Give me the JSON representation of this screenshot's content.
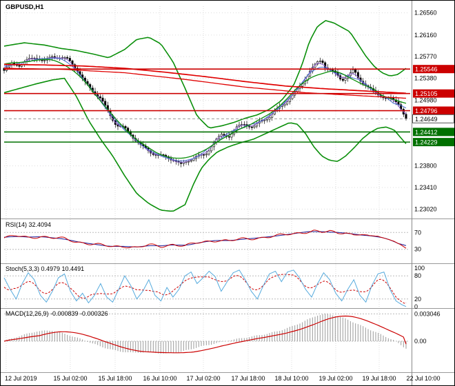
{
  "window": {
    "title": "GBPUSD,H1"
  },
  "colors": {
    "background": "#ffffff",
    "grid": "#dcdcdc",
    "separator": "#999999",
    "bollinger_green": "#0a8f0a",
    "ma_red": "#e00000",
    "ma_violet": "#8a5fd0",
    "ma_blue": "#4a6fd4",
    "level_red": "#cc0000",
    "level_green": "#007000",
    "candle_up": "#ffffff",
    "candle_down": "#000000",
    "candle_outline": "#000000",
    "rsi_line": "#cc0000",
    "rsi_smooth": "#2b2b9e",
    "stoch_k": "#55aadd",
    "stoch_d": "#cc0000",
    "macd_histogram": "#9a9a9a",
    "macd_signal": "#cc0000"
  },
  "chart_data": [
    {
      "type": "candlestick",
      "title": "GBPUSD,H1",
      "symbol": "GBPUSD",
      "timeframe": "H1",
      "y_axis": {
        "min": 1.229,
        "max": 1.2668,
        "ticks": [
          {
            "label": "1.26560",
            "value": 1.2656
          },
          {
            "label": "1.26160",
            "value": 1.2616
          },
          {
            "label": "1.25770",
            "value": 1.2577
          },
          {
            "label": "1.25380",
            "value": 1.2538
          },
          {
            "label": "1.24980",
            "value": 1.2498
          },
          {
            "label": "1.23800",
            "value": 1.238
          },
          {
            "label": "1.23410",
            "value": 1.2341
          },
          {
            "label": "1.23020",
            "value": 1.2302
          }
        ]
      },
      "horizontal_levels": [
        {
          "label": "1.25546",
          "value": 1.25546,
          "color": "#cc0000"
        },
        {
          "label": "1.25105",
          "value": 1.25105,
          "color": "#cc0000"
        },
        {
          "label": "1.24796",
          "value": 1.24796,
          "color": "#cc0000"
        },
        {
          "label": "1.24412",
          "value": 1.24412,
          "color": "#007000"
        },
        {
          "label": "1.24229",
          "value": 1.24229,
          "color": "#007000"
        }
      ],
      "current_price": {
        "label": "1.24649",
        "value": 1.24649
      },
      "close_keypoints": [
        [
          0.0,
          1.2552
        ],
        [
          0.02,
          1.2562
        ],
        [
          0.04,
          1.2558
        ],
        [
          0.06,
          1.257
        ],
        [
          0.08,
          1.2578
        ],
        [
          0.1,
          1.2572
        ],
        [
          0.12,
          1.258
        ],
        [
          0.14,
          1.2575
        ],
        [
          0.16,
          1.2568
        ],
        [
          0.18,
          1.2552
        ],
        [
          0.2,
          1.253
        ],
        [
          0.22,
          1.2518
        ],
        [
          0.24,
          1.2505
        ],
        [
          0.26,
          1.2478
        ],
        [
          0.28,
          1.2452
        ],
        [
          0.3,
          1.2444
        ],
        [
          0.32,
          1.243
        ],
        [
          0.34,
          1.2416
        ],
        [
          0.36,
          1.241
        ],
        [
          0.38,
          1.2403
        ],
        [
          0.4,
          1.2398
        ],
        [
          0.42,
          1.239
        ],
        [
          0.44,
          1.2378
        ],
        [
          0.46,
          1.2388
        ],
        [
          0.48,
          1.2398
        ],
        [
          0.5,
          1.2402
        ],
        [
          0.52,
          1.2425
        ],
        [
          0.54,
          1.2436
        ],
        [
          0.56,
          1.2432
        ],
        [
          0.58,
          1.2446
        ],
        [
          0.6,
          1.2454
        ],
        [
          0.62,
          1.245
        ],
        [
          0.64,
          1.2465
        ],
        [
          0.66,
          1.2472
        ],
        [
          0.68,
          1.2482
        ],
        [
          0.7,
          1.2492
        ],
        [
          0.72,
          1.2505
        ],
        [
          0.74,
          1.2525
        ],
        [
          0.76,
          1.2552
        ],
        [
          0.78,
          1.257
        ],
        [
          0.79,
          1.2575
        ],
        [
          0.8,
          1.256
        ],
        [
          0.82,
          1.2548
        ],
        [
          0.84,
          1.2532
        ],
        [
          0.86,
          1.2542
        ],
        [
          0.87,
          1.255
        ],
        [
          0.88,
          1.2538
        ],
        [
          0.9,
          1.2528
        ],
        [
          0.92,
          1.2516
        ],
        [
          0.94,
          1.2508
        ],
        [
          0.96,
          1.25
        ],
        [
          0.97,
          1.2494
        ],
        [
          0.98,
          1.249
        ],
        [
          0.99,
          1.2478
        ],
        [
          1.0,
          1.24649
        ]
      ],
      "bollinger_upper": [
        [
          0.0,
          1.2596
        ],
        [
          0.05,
          1.2602
        ],
        [
          0.1,
          1.2598
        ],
        [
          0.14,
          1.2592
        ],
        [
          0.18,
          1.2588
        ],
        [
          0.22,
          1.2582
        ],
        [
          0.26,
          1.2575
        ],
        [
          0.3,
          1.259
        ],
        [
          0.33,
          1.2608
        ],
        [
          0.36,
          1.2612
        ],
        [
          0.39,
          1.26
        ],
        [
          0.42,
          1.2568
        ],
        [
          0.45,
          1.252
        ],
        [
          0.48,
          1.247
        ],
        [
          0.51,
          1.2448
        ],
        [
          0.54,
          1.2452
        ],
        [
          0.57,
          1.2458
        ],
        [
          0.6,
          1.2466
        ],
        [
          0.63,
          1.2472
        ],
        [
          0.66,
          1.2482
        ],
        [
          0.69,
          1.2498
        ],
        [
          0.72,
          1.2525
        ],
        [
          0.74,
          1.256
        ],
        [
          0.76,
          1.2605
        ],
        [
          0.78,
          1.2632
        ],
        [
          0.8,
          1.2642
        ],
        [
          0.82,
          1.2638
        ],
        [
          0.84,
          1.263
        ],
        [
          0.86,
          1.2622
        ],
        [
          0.88,
          1.26
        ],
        [
          0.9,
          1.2578
        ],
        [
          0.92,
          1.256
        ],
        [
          0.94,
          1.2548
        ],
        [
          0.96,
          1.2542
        ],
        [
          0.98,
          1.2545
        ],
        [
          1.0,
          1.2556
        ]
      ],
      "bollinger_lower": [
        [
          0.0,
          1.2512
        ],
        [
          0.04,
          1.252
        ],
        [
          0.08,
          1.2528
        ],
        [
          0.12,
          1.2535
        ],
        [
          0.15,
          1.2538
        ],
        [
          0.18,
          1.2505
        ],
        [
          0.21,
          1.2462
        ],
        [
          0.24,
          1.2428
        ],
        [
          0.27,
          1.2398
        ],
        [
          0.3,
          1.2362
        ],
        [
          0.33,
          1.233
        ],
        [
          0.36,
          1.2312
        ],
        [
          0.39,
          1.23
        ],
        [
          0.42,
          1.2298
        ],
        [
          0.45,
          1.231
        ],
        [
          0.47,
          1.2345
        ],
        [
          0.49,
          1.2375
        ],
        [
          0.51,
          1.2392
        ],
        [
          0.53,
          1.2405
        ],
        [
          0.56,
          1.2415
        ],
        [
          0.59,
          1.2422
        ],
        [
          0.62,
          1.2428
        ],
        [
          0.65,
          1.2438
        ],
        [
          0.68,
          1.2448
        ],
        [
          0.71,
          1.2458
        ],
        [
          0.73,
          1.2455
        ],
        [
          0.75,
          1.2438
        ],
        [
          0.77,
          1.2415
        ],
        [
          0.79,
          1.2398
        ],
        [
          0.81,
          1.239
        ],
        [
          0.83,
          1.2388
        ],
        [
          0.85,
          1.2398
        ],
        [
          0.87,
          1.2412
        ],
        [
          0.89,
          1.2428
        ],
        [
          0.91,
          1.244
        ],
        [
          0.93,
          1.2448
        ],
        [
          0.95,
          1.245
        ],
        [
          0.97,
          1.2445
        ],
        [
          0.99,
          1.2428
        ],
        [
          1.0,
          1.242
        ]
      ],
      "ma_red_slow": [
        [
          0.0,
          1.2563
        ],
        [
          0.1,
          1.2562
        ],
        [
          0.2,
          1.256
        ],
        [
          0.3,
          1.2556
        ],
        [
          0.4,
          1.2549
        ],
        [
          0.5,
          1.2541
        ],
        [
          0.6,
          1.2532
        ],
        [
          0.7,
          1.2524
        ],
        [
          0.8,
          1.2519
        ],
        [
          0.9,
          1.2515
        ],
        [
          1.0,
          1.2511
        ]
      ],
      "ma_red_fast": [
        [
          0.0,
          1.2556
        ],
        [
          0.15,
          1.2554
        ],
        [
          0.3,
          1.2548
        ],
        [
          0.45,
          1.2536
        ],
        [
          0.6,
          1.2522
        ],
        [
          0.75,
          1.2512
        ],
        [
          0.9,
          1.2506
        ],
        [
          1.0,
          1.2502
        ]
      ]
    },
    {
      "type": "line",
      "name": "RSI",
      "label": "RSI(14) 32.4094",
      "last": 32.4094,
      "levels": [
        {
          "label": "70",
          "value": 70
        },
        {
          "label": "30",
          "value": 30
        }
      ],
      "keypoints": [
        [
          0.0,
          57
        ],
        [
          0.03,
          62
        ],
        [
          0.06,
          58
        ],
        [
          0.09,
          61
        ],
        [
          0.12,
          57
        ],
        [
          0.15,
          55
        ],
        [
          0.18,
          48
        ],
        [
          0.21,
          44
        ],
        [
          0.24,
          40
        ],
        [
          0.27,
          36
        ],
        [
          0.3,
          38
        ],
        [
          0.33,
          34
        ],
        [
          0.36,
          40
        ],
        [
          0.39,
          37
        ],
        [
          0.42,
          42
        ],
        [
          0.45,
          38
        ],
        [
          0.48,
          45
        ],
        [
          0.5,
          48
        ],
        [
          0.53,
          52
        ],
        [
          0.56,
          50
        ],
        [
          0.59,
          54
        ],
        [
          0.62,
          56
        ],
        [
          0.65,
          59
        ],
        [
          0.68,
          62
        ],
        [
          0.71,
          66
        ],
        [
          0.74,
          70
        ],
        [
          0.77,
          74
        ],
        [
          0.79,
          70
        ],
        [
          0.81,
          73
        ],
        [
          0.83,
          68
        ],
        [
          0.85,
          71
        ],
        [
          0.87,
          64
        ],
        [
          0.89,
          66
        ],
        [
          0.91,
          60
        ],
        [
          0.93,
          62
        ],
        [
          0.95,
          55
        ],
        [
          0.97,
          50
        ],
        [
          0.985,
          42
        ],
        [
          1.0,
          32.4
        ]
      ]
    },
    {
      "type": "line",
      "name": "Stochastic",
      "label": "Stoch(5,3,3) 0.4979 10.4491",
      "last_k": 0.4979,
      "last_d": 10.4491,
      "levels": [
        {
          "label": "100",
          "value": 100
        },
        {
          "label": "80",
          "value": 80
        },
        {
          "label": "20",
          "value": 20
        },
        {
          "label": "0",
          "value": 0
        }
      ],
      "keypoints": [
        [
          0.0,
          75
        ],
        [
          0.015,
          45
        ],
        [
          0.03,
          20
        ],
        [
          0.045,
          60
        ],
        [
          0.06,
          88
        ],
        [
          0.075,
          70
        ],
        [
          0.09,
          30
        ],
        [
          0.105,
          12
        ],
        [
          0.12,
          40
        ],
        [
          0.135,
          75
        ],
        [
          0.15,
          85
        ],
        [
          0.165,
          40
        ],
        [
          0.18,
          15
        ],
        [
          0.195,
          35
        ],
        [
          0.21,
          10
        ],
        [
          0.225,
          30
        ],
        [
          0.24,
          60
        ],
        [
          0.255,
          25
        ],
        [
          0.27,
          12
        ],
        [
          0.285,
          45
        ],
        [
          0.3,
          80
        ],
        [
          0.315,
          55
        ],
        [
          0.33,
          20
        ],
        [
          0.345,
          40
        ],
        [
          0.36,
          70
        ],
        [
          0.375,
          30
        ],
        [
          0.39,
          15
        ],
        [
          0.405,
          50
        ],
        [
          0.42,
          25
        ],
        [
          0.435,
          45
        ],
        [
          0.45,
          80
        ],
        [
          0.465,
          90
        ],
        [
          0.48,
          60
        ],
        [
          0.495,
          75
        ],
        [
          0.51,
          92
        ],
        [
          0.525,
          78
        ],
        [
          0.54,
          40
        ],
        [
          0.555,
          65
        ],
        [
          0.57,
          88
        ],
        [
          0.585,
          95
        ],
        [
          0.6,
          70
        ],
        [
          0.615,
          40
        ],
        [
          0.63,
          20
        ],
        [
          0.645,
          55
        ],
        [
          0.66,
          85
        ],
        [
          0.675,
          92
        ],
        [
          0.69,
          65
        ],
        [
          0.705,
          90
        ],
        [
          0.72,
          95
        ],
        [
          0.735,
          75
        ],
        [
          0.75,
          45
        ],
        [
          0.765,
          25
        ],
        [
          0.78,
          60
        ],
        [
          0.795,
          88
        ],
        [
          0.81,
          70
        ],
        [
          0.825,
          35
        ],
        [
          0.84,
          15
        ],
        [
          0.855,
          45
        ],
        [
          0.87,
          70
        ],
        [
          0.885,
          30
        ],
        [
          0.9,
          12
        ],
        [
          0.915,
          55
        ],
        [
          0.93,
          85
        ],
        [
          0.945,
          90
        ],
        [
          0.96,
          45
        ],
        [
          0.975,
          15
        ],
        [
          0.99,
          5
        ],
        [
          1.0,
          0.5
        ]
      ]
    },
    {
      "type": "macd",
      "name": "MACD",
      "label": "MACD(12,26,9) -0.000839 -0.000326",
      "last_main": -0.000839,
      "last_signal": -0.000326,
      "ticks": [
        {
          "label": "0.003046",
          "value": 0.003046
        },
        {
          "label": "0.00",
          "value": 0
        }
      ],
      "keypoints": [
        [
          0.0,
          0.0
        ],
        [
          0.04,
          0.0006
        ],
        [
          0.08,
          0.0011
        ],
        [
          0.12,
          0.0012
        ],
        [
          0.16,
          0.0007
        ],
        [
          0.2,
          0.0001
        ],
        [
          0.24,
          -0.0006
        ],
        [
          0.28,
          -0.0011
        ],
        [
          0.32,
          -0.0013
        ],
        [
          0.36,
          -0.0012
        ],
        [
          0.4,
          -0.0014
        ],
        [
          0.44,
          -0.0012
        ],
        [
          0.48,
          -0.0007
        ],
        [
          0.52,
          -0.0003
        ],
        [
          0.56,
          0.0001
        ],
        [
          0.6,
          0.0004
        ],
        [
          0.64,
          0.0007
        ],
        [
          0.68,
          0.0011
        ],
        [
          0.72,
          0.0017
        ],
        [
          0.75,
          0.0023
        ],
        [
          0.78,
          0.0029
        ],
        [
          0.8,
          0.00305
        ],
        [
          0.82,
          0.0029
        ],
        [
          0.85,
          0.0025
        ],
        [
          0.88,
          0.0019
        ],
        [
          0.91,
          0.0013
        ],
        [
          0.94,
          0.0007
        ],
        [
          0.97,
          0.0001
        ],
        [
          1.0,
          -0.000839
        ]
      ]
    }
  ],
  "x_axis": {
    "labels": [
      {
        "label": "12 Jul 2019",
        "t": 0.0051
      },
      {
        "label": "15 Jul 02:00",
        "t": 0.1646
      },
      {
        "label": "15 Jul 18:00",
        "t": 0.2762
      },
      {
        "label": "16 Jul 10:00",
        "t": 0.3876
      },
      {
        "label": "17 Jul 02:00",
        "t": 0.4957
      },
      {
        "label": "17 Jul 18:00",
        "t": 0.6072
      },
      {
        "label": "18 Jul 10:00",
        "t": 0.7153
      },
      {
        "label": "19 Jul 02:00",
        "t": 0.825
      },
      {
        "label": "19 Jul 18:00",
        "t": 0.9331
      },
      {
        "label": "22 Jul 10:00",
        "t": 1.0429
      }
    ]
  }
}
